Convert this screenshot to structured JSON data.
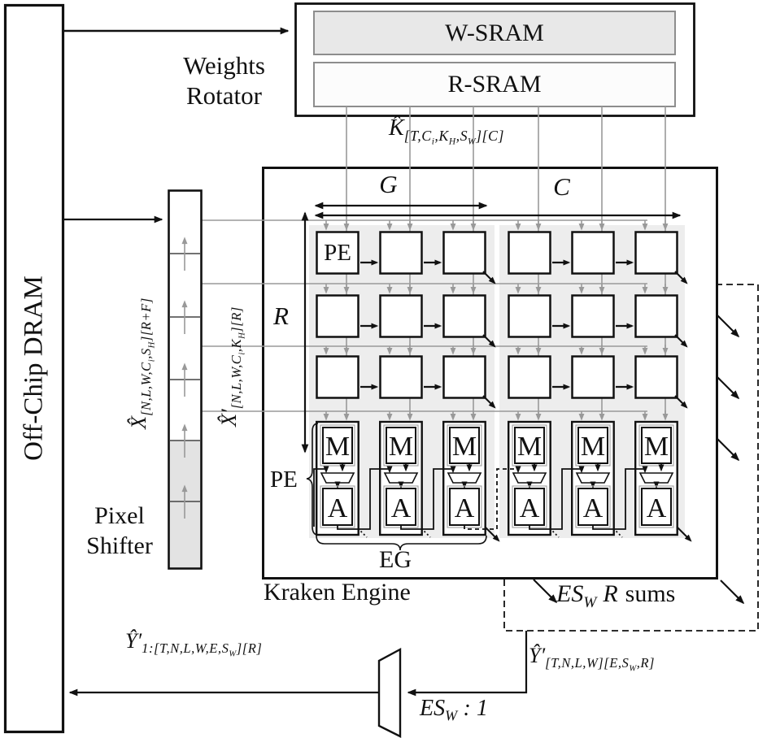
{
  "dram": {
    "label": "Off-Chip DRAM"
  },
  "weights_rotator": {
    "label_line1": "Weights",
    "label_line2": "Rotator",
    "wsram_label": "W-SRAM",
    "rsram_label": "R-SRAM"
  },
  "kraken_engine": {
    "title": "Kraken Engine",
    "pe_box_label": "PE",
    "pe_brace_label": "PE",
    "multiplier_label": "M",
    "adder_label": "A",
    "eg_label": "EG",
    "dim_g": "G",
    "dim_c": "C",
    "dim_r": "R"
  },
  "pixel_shifter": {
    "label_line1": "Pixel",
    "label_line2": "Shifter"
  },
  "signals": {
    "weights_in": "K̂_{[T,C_{i},K_{H},S_{W}][C]}",
    "pixels_in": "X̂_{[N,L,W,C_{i},S_{H}][R+F]}",
    "pixels_shifted": "X̂′_{[N,L,W,C_{i},K_{H}][R]}",
    "partial_sums": "ES_{W} R",
    "partial_sums_suffix": "sums",
    "psums_out": "Ŷ′_{[T,N,L,W][E,S_{W},R]}",
    "mux_ratio": "ES_{W} : 1",
    "dram_writeback": "Ŷ′_{1:[T,N,L,W,E,S_{W}][R]}"
  },
  "colors": {
    "line_black": "#1a1a1a",
    "line_gray": "#9a9a9a",
    "sram_fill": "#e8e8e8",
    "group_bg": "#ededed",
    "shifter_fill": "#e3e3e3"
  }
}
